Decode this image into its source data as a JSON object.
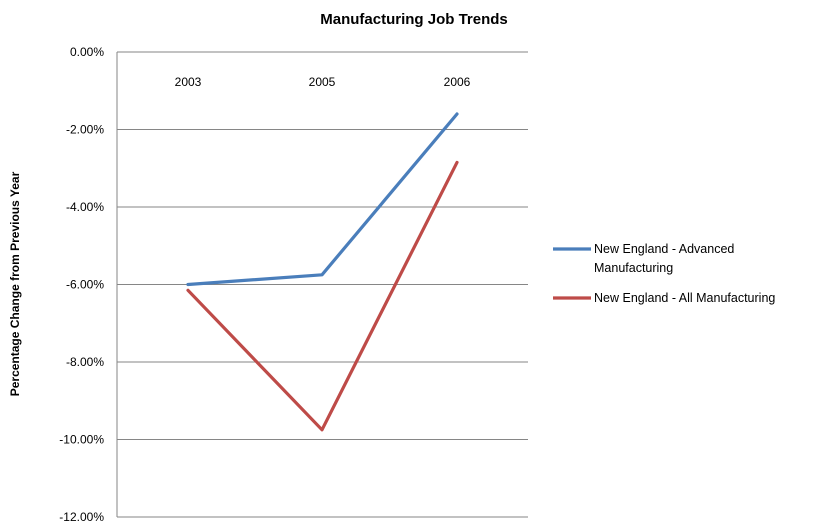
{
  "chart_data": {
    "type": "line",
    "title": "Manufacturing Job Trends",
    "xlabel": "",
    "ylabel": "Percentage Change from Previous Year",
    "categories": [
      "2003",
      "2005",
      "2006"
    ],
    "ylim": [
      -12,
      0
    ],
    "yticks": [
      "0.00%",
      "-2.00%",
      "-4.00%",
      "-6.00%",
      "-8.00%",
      "-10.00%",
      "-12.00%"
    ],
    "grid": true,
    "legend_position": "right",
    "series": [
      {
        "name": "New England - Advanced Manufacturing",
        "legend_lines": [
          "New England - Advanced",
          "Manufacturing"
        ],
        "color": "#4a7ebb",
        "values": [
          -6.0,
          -5.75,
          -1.6
        ]
      },
      {
        "name": "New England - All Manufacturing",
        "legend_lines": [
          "New England - All Manufacturing"
        ],
        "color": "#be4b48",
        "values": [
          -6.15,
          -9.75,
          -2.85
        ]
      }
    ]
  }
}
